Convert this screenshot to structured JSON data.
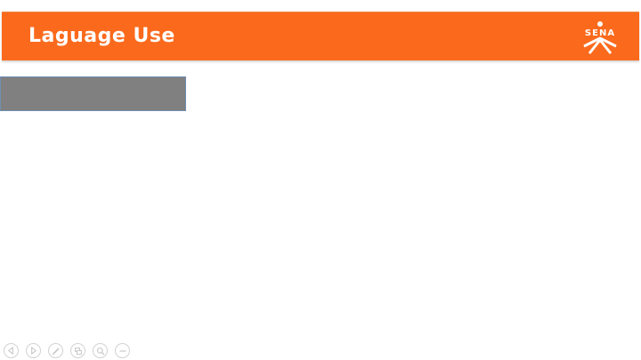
{
  "slide": {
    "title": "Laguage Use",
    "header_color": "#fb6a1c",
    "placeholder_color": "#808080"
  },
  "logo": {
    "text": "SENA",
    "icon": "sena-logo-icon"
  },
  "controls": [
    {
      "name": "previous-slide-button",
      "icon": "arrow-left-icon"
    },
    {
      "name": "next-slide-button",
      "icon": "arrow-right-icon"
    },
    {
      "name": "pen-tool-button",
      "icon": "pen-icon"
    },
    {
      "name": "slide-sorter-button",
      "icon": "slides-grid-icon"
    },
    {
      "name": "zoom-button",
      "icon": "magnifier-icon"
    },
    {
      "name": "more-options-button",
      "icon": "ellipsis-icon"
    }
  ]
}
